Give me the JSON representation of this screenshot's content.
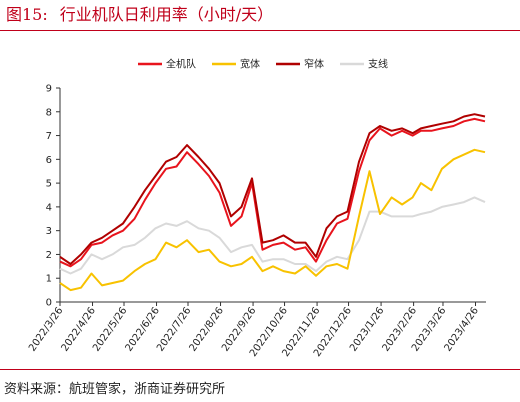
{
  "title": {
    "label": "图15:",
    "text": "行业机队日利用率（小时/天）"
  },
  "source": "资料来源：航班管家，浙商证券研究所",
  "colors": {
    "全机队": "#e8141d",
    "宽体": "#f8c200",
    "窄体": "#b00000",
    "支线": "#d9d9d9",
    "accent": "#c0001a"
  },
  "chart_data": {
    "type": "line",
    "title": "行业机队日利用率（小时/天）",
    "xlabel": "",
    "ylabel": "",
    "ylim": [
      0,
      9
    ],
    "yticks": [
      0,
      1,
      2,
      3,
      4,
      5,
      6,
      7,
      8,
      9
    ],
    "xlim": [
      "2022-03-26",
      "2023-05-06"
    ],
    "xticks": [
      "2022/3/26",
      "2022/4/26",
      "2022/5/26",
      "2022/6/26",
      "2022/7/26",
      "2022/8/26",
      "2022/9/26",
      "2022/10/26",
      "2022/11/26",
      "2022/12/26",
      "2023/1/26",
      "2023/2/26",
      "2023/3/26",
      "2023/4/26"
    ],
    "grid": false,
    "legend": "top-center",
    "x": [
      "2022-03-26",
      "2022-04-05",
      "2022-04-15",
      "2022-04-25",
      "2022-05-05",
      "2022-05-15",
      "2022-05-25",
      "2022-06-05",
      "2022-06-15",
      "2022-06-25",
      "2022-07-05",
      "2022-07-15",
      "2022-07-25",
      "2022-08-05",
      "2022-08-15",
      "2022-08-25",
      "2022-09-05",
      "2022-09-15",
      "2022-09-25",
      "2022-10-05",
      "2022-10-15",
      "2022-10-25",
      "2022-11-05",
      "2022-11-15",
      "2022-11-25",
      "2022-12-05",
      "2022-12-15",
      "2022-12-25",
      "2023-01-05",
      "2023-01-15",
      "2023-01-25",
      "2023-02-05",
      "2023-02-15",
      "2023-02-25",
      "2023-03-05",
      "2023-03-15",
      "2023-03-25",
      "2023-04-05",
      "2023-04-15",
      "2023-04-25",
      "2023-05-05"
    ],
    "series": [
      {
        "name": "全机队",
        "values": [
          1.7,
          1.5,
          1.8,
          2.4,
          2.5,
          2.8,
          3.0,
          3.5,
          4.3,
          5.0,
          5.6,
          5.7,
          6.3,
          5.8,
          5.3,
          4.6,
          3.2,
          3.6,
          5.0,
          2.2,
          2.4,
          2.5,
          2.2,
          2.3,
          1.7,
          2.6,
          3.3,
          3.5,
          5.5,
          6.8,
          7.3,
          7.0,
          7.2,
          7.0,
          7.2,
          7.2,
          7.3,
          7.4,
          7.6,
          7.7,
          7.6
        ]
      },
      {
        "name": "宽体",
        "values": [
          0.8,
          0.5,
          0.6,
          1.2,
          0.7,
          0.8,
          0.9,
          1.3,
          1.6,
          1.8,
          2.5,
          2.3,
          2.6,
          2.1,
          2.2,
          1.7,
          1.5,
          1.6,
          1.9,
          1.3,
          1.5,
          1.3,
          1.2,
          1.5,
          1.1,
          1.5,
          1.6,
          1.4,
          3.6,
          5.5,
          3.7,
          4.4,
          4.1,
          4.4,
          5.0,
          4.7,
          5.6,
          6.0,
          6.2,
          6.4,
          6.3
        ]
      },
      {
        "name": "窄体",
        "values": [
          1.9,
          1.6,
          2.0,
          2.5,
          2.7,
          3.0,
          3.3,
          4.0,
          4.7,
          5.3,
          5.9,
          6.1,
          6.6,
          6.1,
          5.6,
          5.0,
          3.6,
          4.0,
          5.2,
          2.5,
          2.6,
          2.8,
          2.5,
          2.5,
          1.9,
          3.1,
          3.6,
          3.8,
          5.9,
          7.1,
          7.4,
          7.2,
          7.3,
          7.1,
          7.3,
          7.4,
          7.5,
          7.6,
          7.8,
          7.9,
          7.8
        ]
      },
      {
        "name": "支线",
        "values": [
          1.4,
          1.2,
          1.4,
          2.0,
          1.8,
          2.0,
          2.3,
          2.4,
          2.7,
          3.1,
          3.3,
          3.2,
          3.4,
          3.1,
          3.0,
          2.7,
          2.1,
          2.3,
          2.4,
          1.7,
          1.8,
          1.8,
          1.6,
          1.6,
          1.3,
          1.7,
          1.9,
          1.8,
          2.6,
          3.8,
          3.8,
          3.6,
          3.6,
          3.6,
          3.7,
          3.8,
          4.0,
          4.1,
          4.2,
          4.4,
          4.2
        ]
      }
    ]
  }
}
